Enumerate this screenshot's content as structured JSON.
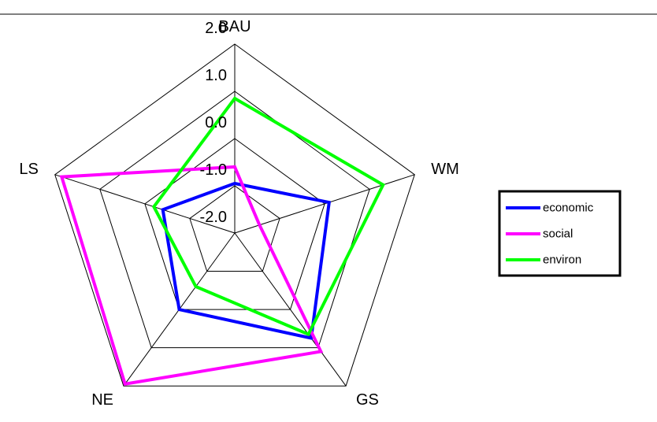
{
  "chart_data": {
    "type": "radar",
    "axes": [
      "BAU",
      "WM",
      "GS",
      "NE",
      "LS"
    ],
    "ticks": [
      "-2.0",
      "-1.0",
      "0.0",
      "1.0",
      "2.0"
    ],
    "rlim": [
      -2.0,
      2.0
    ],
    "grid": true,
    "legend_position": "right",
    "series": [
      {
        "name": "economic",
        "color": "#0000ff",
        "values": [
          -0.95,
          0.1,
          0.75,
          0.0,
          -0.4
        ]
      },
      {
        "name": "social",
        "color": "#ff00ff",
        "values": [
          -0.6,
          -1.45,
          1.1,
          1.95,
          1.85
        ]
      },
      {
        "name": "environ",
        "color": "#00ff00",
        "values": [
          0.85,
          1.3,
          0.65,
          -0.6,
          -0.2
        ]
      }
    ]
  }
}
